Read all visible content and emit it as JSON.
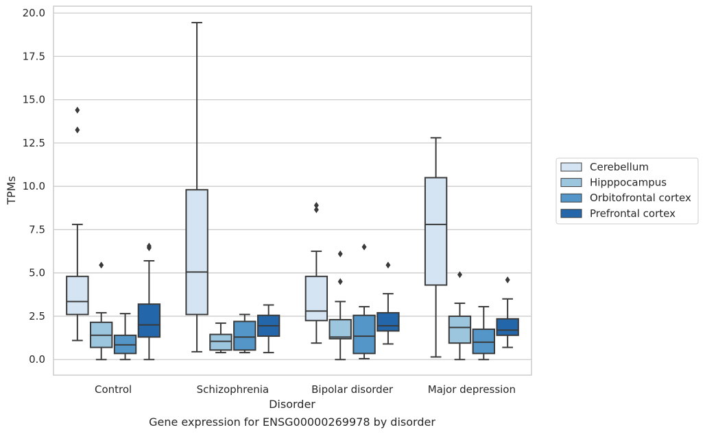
{
  "chart_data": {
    "type": "box",
    "caption": "Gene expression for ENSG00000269978 by disorder",
    "xlabel": "Disorder",
    "ylabel": "TPMs",
    "ylim": [
      -0.9,
      20.4
    ],
    "yticks": [
      0,
      2.5,
      5,
      7.5,
      10,
      12.5,
      15,
      17.5,
      20
    ],
    "ytick_labels": [
      "0.0",
      "2.5",
      "5.0",
      "7.5",
      "10.0",
      "12.5",
      "15.0",
      "17.5",
      "20.0"
    ],
    "grid": "horizontal",
    "legend_position": "right",
    "categories": [
      "Control",
      "Schizophrenia",
      "Bipolar disorder",
      "Major depression"
    ],
    "series": [
      {
        "name": "Cerebellum",
        "color": "#d4e4f2",
        "boxes": [
          {
            "whislo": 1.1,
            "q1": 2.6,
            "med": 3.35,
            "q3": 4.8,
            "whishi": 7.8,
            "fliers": [
              13.25,
              14.4
            ]
          },
          {
            "whislo": 0.45,
            "q1": 2.6,
            "med": 5.05,
            "q3": 9.8,
            "whishi": 19.45,
            "fliers": []
          },
          {
            "whislo": 0.95,
            "q1": 2.25,
            "med": 2.8,
            "q3": 4.8,
            "whishi": 6.25,
            "fliers": [
              8.65,
              8.9
            ]
          },
          {
            "whislo": 0.15,
            "q1": 4.3,
            "med": 7.8,
            "q3": 10.5,
            "whishi": 12.8,
            "fliers": []
          }
        ]
      },
      {
        "name": "Hipppocampus",
        "color": "#9cc5de",
        "boxes": [
          {
            "whislo": 0.0,
            "q1": 0.7,
            "med": 1.4,
            "q3": 2.15,
            "whishi": 2.7,
            "fliers": [
              5.45
            ]
          },
          {
            "whislo": 0.4,
            "q1": 0.55,
            "med": 1.05,
            "q3": 1.45,
            "whishi": 2.1,
            "fliers": []
          },
          {
            "whislo": 0.0,
            "q1": 1.2,
            "med": 1.3,
            "q3": 2.3,
            "whishi": 3.35,
            "fliers": [
              4.5,
              6.1
            ]
          },
          {
            "whislo": 0.0,
            "q1": 0.95,
            "med": 1.85,
            "q3": 2.5,
            "whishi": 3.25,
            "fliers": [
              4.9
            ]
          }
        ]
      },
      {
        "name": "Orbitofrontal cortex",
        "color": "#5396c7",
        "boxes": [
          {
            "whislo": 0.0,
            "q1": 0.35,
            "med": 0.85,
            "q3": 1.4,
            "whishi": 2.65,
            "fliers": []
          },
          {
            "whislo": 0.4,
            "q1": 0.55,
            "med": 1.3,
            "q3": 2.2,
            "whishi": 2.6,
            "fliers": []
          },
          {
            "whislo": 0.05,
            "q1": 0.35,
            "med": 1.35,
            "q3": 2.55,
            "whishi": 3.05,
            "fliers": [
              6.5
            ]
          },
          {
            "whislo": 0.0,
            "q1": 0.35,
            "med": 1.0,
            "q3": 1.75,
            "whishi": 3.05,
            "fliers": []
          }
        ]
      },
      {
        "name": "Prefrontal cortex",
        "color": "#2366a9",
        "boxes": [
          {
            "whislo": 0.0,
            "q1": 1.3,
            "med": 2.0,
            "q3": 3.2,
            "whishi": 5.7,
            "fliers": [
              6.45,
              6.55
            ]
          },
          {
            "whislo": 0.4,
            "q1": 1.35,
            "med": 1.95,
            "q3": 2.55,
            "whishi": 3.15,
            "fliers": []
          },
          {
            "whislo": 0.9,
            "q1": 1.65,
            "med": 1.95,
            "q3": 2.7,
            "whishi": 3.8,
            "fliers": [
              5.45
            ]
          },
          {
            "whislo": 0.7,
            "q1": 1.4,
            "med": 1.7,
            "q3": 2.35,
            "whishi": 3.5,
            "fliers": [
              4.6
            ]
          }
        ]
      }
    ]
  }
}
